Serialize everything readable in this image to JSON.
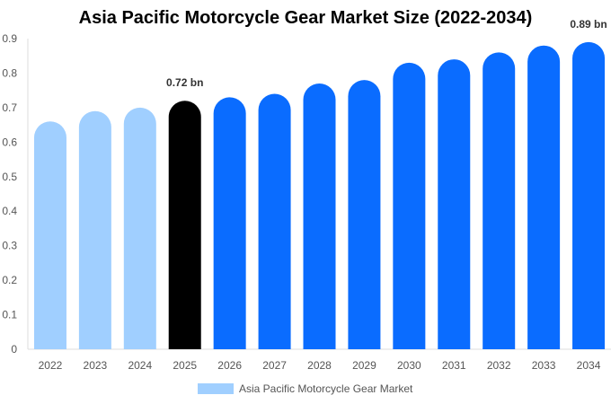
{
  "chart_data": {
    "type": "bar",
    "title": "Asia Pacific Motorcycle Gear Market Size (2022-2034)",
    "xlabel": "",
    "ylabel": "",
    "categories": [
      "2022",
      "2023",
      "2024",
      "2025",
      "2026",
      "2027",
      "2028",
      "2029",
      "2030",
      "2031",
      "2032",
      "2033",
      "2034"
    ],
    "series": [
      {
        "name": "Asia Pacific Motorcycle Gear Market",
        "values": [
          0.66,
          0.69,
          0.7,
          0.72,
          0.73,
          0.74,
          0.77,
          0.78,
          0.83,
          0.84,
          0.86,
          0.88,
          0.89
        ]
      }
    ],
    "ylim": [
      0,
      0.9
    ],
    "yticks": [
      "0",
      "0.1",
      "0.2",
      "0.3",
      "0.4",
      "0.5",
      "0.6",
      "0.7",
      "0.8",
      "0.9"
    ],
    "data_labels": [
      {
        "category": "2025",
        "text": "0.72 bn"
      },
      {
        "category": "2034",
        "text": "0.89 bn"
      }
    ],
    "bar_colors": [
      "#a0cfff",
      "#a0cfff",
      "#a0cfff",
      "#000000",
      "#0a6cff",
      "#0a6cff",
      "#0a6cff",
      "#0a6cff",
      "#0a6cff",
      "#0a6cff",
      "#0a6cff",
      "#0a6cff",
      "#0a6cff"
    ],
    "legend": {
      "position": "bottom-center",
      "swatch_color": "#a0cfff"
    },
    "grid": false
  }
}
